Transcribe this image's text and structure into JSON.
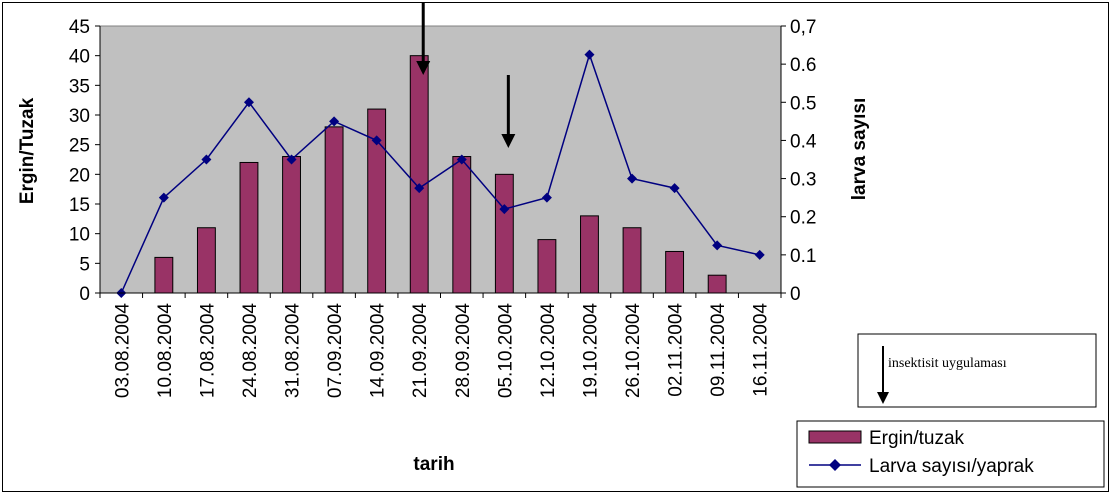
{
  "chart_data": {
    "type": "bar",
    "categories": [
      "03.08.2004",
      "10.08.2004",
      "17.08.2004",
      "24.08.2004",
      "31.08.2004",
      "07.09.2004",
      "14.09.2004",
      "21.09.2004",
      "28.09.2004",
      "05.10.2004",
      "12.10.2004",
      "19.10.2004",
      "26.10.2004",
      "02.11.2004",
      "09.11.2004",
      "16.11.2004"
    ],
    "series": [
      {
        "name": "Ergin/tuzak",
        "type": "bar",
        "axis": "left",
        "color": "#993366",
        "values": [
          0,
          6,
          11,
          22,
          23,
          28,
          31,
          40,
          23,
          20,
          9,
          13,
          11,
          7,
          3,
          0
        ]
      },
      {
        "name": "Larva sayısı/yaprak",
        "type": "line",
        "axis": "right",
        "color": "#000080",
        "values": [
          0,
          0.25,
          0.35,
          0.5,
          0.35,
          0.45,
          0.4,
          0.275,
          0.35,
          0.22,
          0.25,
          0.625,
          0.3,
          0.275,
          0.125,
          0.1
        ]
      }
    ],
    "xlabel": "tarih",
    "ylabel": "Ergin/Tuzak",
    "y2label": "larva sayısı",
    "ylim": [
      0,
      45
    ],
    "yticks": [
      "0",
      "5",
      "10",
      "15",
      "20",
      "25",
      "30",
      "35",
      "40",
      "45"
    ],
    "y2lim": [
      0,
      0.7
    ],
    "y2ticks": [
      "0",
      "0.1",
      "0.2",
      "0.3",
      "0.4",
      "0.5",
      "0.6",
      "0,7"
    ],
    "plot_background": "#c0c0c0",
    "grid": false,
    "legend_position": "bottom-right",
    "annotations": [
      {
        "type": "arrow",
        "category": "21.09.2004"
      },
      {
        "type": "arrow",
        "category": "05.10.2004"
      }
    ],
    "annotation_note": "insektisit uygulaması"
  }
}
